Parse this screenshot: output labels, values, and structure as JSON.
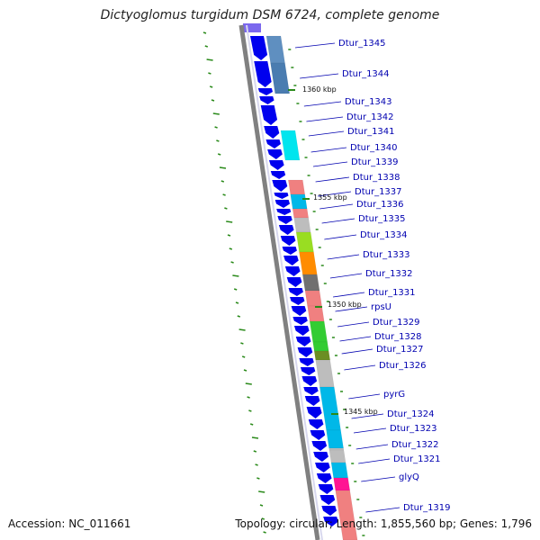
{
  "title": "Dictyoglomus turgidum DSM 6724, complete genome",
  "accession": "Accession: NC_011661",
  "topology": "Topology: circular; Length: 1,855,560 bp; Genes: 1,796",
  "colors": {
    "backbone": "#808080",
    "cds": "#0000ee",
    "label": "#0000b0",
    "tick": "#2a8a1a"
  },
  "kbp_labels": [
    "1360 kbp",
    "1355 kbp",
    "1350 kbp",
    "1345 kbp"
  ],
  "genes": [
    {
      "label": "Dtur_1345",
      "color": "#5f8fc0"
    },
    {
      "label": "Dtur_1344",
      "color": "#4a7cb0"
    },
    {
      "label": "Dtur_1343",
      "color": "none"
    },
    {
      "label": "Dtur_1342",
      "color": "none"
    },
    {
      "label": "Dtur_1341",
      "color": "#00e5ee"
    },
    {
      "label": "Dtur_1340",
      "color": "none"
    },
    {
      "label": "Dtur_1339",
      "color": "none"
    },
    {
      "label": "Dtur_1338",
      "color": "#f08080"
    },
    {
      "label": "Dtur_1337",
      "color": "#00b8e8"
    },
    {
      "label": "Dtur_1336",
      "color": "#f08080"
    },
    {
      "label": "Dtur_1335",
      "color": "#bdbdbd"
    },
    {
      "label": "Dtur_1334",
      "color": "#99dd22"
    },
    {
      "label": "Dtur_1333",
      "color": "#ff8c00"
    },
    {
      "label": "Dtur_1332",
      "color": "#707070"
    },
    {
      "label": "Dtur_1331",
      "color": "#f08080"
    },
    {
      "label": "rpsU",
      "color": "#f08080"
    },
    {
      "label": "Dtur_1329",
      "color": "#33cc33"
    },
    {
      "label": "Dtur_1328",
      "color": "#33cc33"
    },
    {
      "label": "Dtur_1327",
      "color": "#6b8e23"
    },
    {
      "label": "Dtur_1326",
      "color": "#bdbdbd"
    },
    {
      "label": "pyrG",
      "color": "#00b8e8"
    },
    {
      "label": "Dtur_1324",
      "color": "#00b8e8"
    },
    {
      "label": "Dtur_1323",
      "color": "#bdbdbd"
    },
    {
      "label": "Dtur_1322",
      "color": "#bdbdbd"
    },
    {
      "label": "Dtur_1321",
      "color": "#00b8e8"
    },
    {
      "label": "glyQ",
      "color": "#ff1493"
    },
    {
      "label": "Dtur_1319",
      "color": "#f08080"
    }
  ]
}
